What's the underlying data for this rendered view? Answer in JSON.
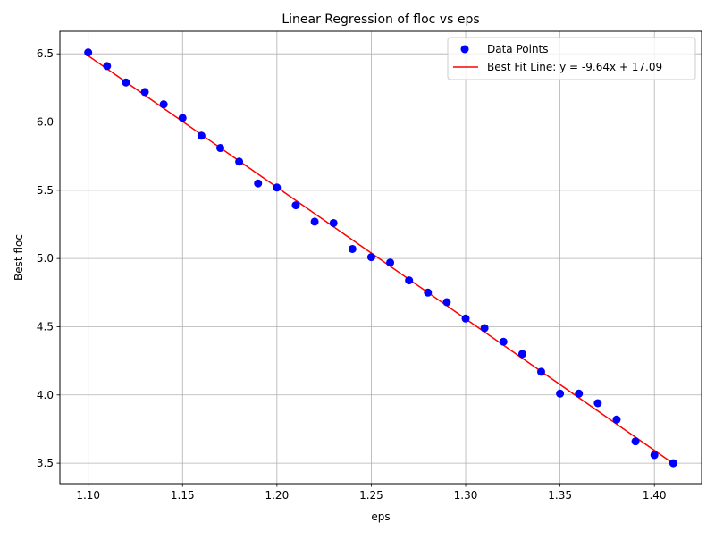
{
  "chart_data": {
    "type": "scatter",
    "title": "Linear Regression of floc vs eps",
    "xlabel": "eps",
    "ylabel": "Best floc",
    "xlim": [
      1.085,
      1.425
    ],
    "ylim": [
      3.35,
      6.665
    ],
    "grid": true,
    "legend_placement": "top-right",
    "x_ticks": [
      "1.10",
      "1.15",
      "1.20",
      "1.25",
      "1.30",
      "1.35",
      "1.40"
    ],
    "y_ticks": [
      "3.5",
      "4.0",
      "4.5",
      "5.0",
      "5.5",
      "6.0",
      "6.5"
    ],
    "series": [
      {
        "name": "Data Points",
        "kind": "scatter",
        "color": "#0000ff",
        "x": [
          1.1,
          1.11,
          1.12,
          1.13,
          1.14,
          1.15,
          1.16,
          1.17,
          1.18,
          1.19,
          1.2,
          1.21,
          1.22,
          1.23,
          1.24,
          1.25,
          1.26,
          1.27,
          1.28,
          1.29,
          1.3,
          1.31,
          1.32,
          1.33,
          1.34,
          1.35,
          1.36,
          1.37,
          1.38,
          1.39,
          1.4,
          1.41
        ],
        "y": [
          6.51,
          6.41,
          6.29,
          6.22,
          6.13,
          6.03,
          5.9,
          5.81,
          5.71,
          5.55,
          5.52,
          5.39,
          5.27,
          5.26,
          5.07,
          5.01,
          4.97,
          4.84,
          4.75,
          4.68,
          4.56,
          4.49,
          4.39,
          4.3,
          4.17,
          4.01,
          4.01,
          3.94,
          3.82,
          3.66,
          3.56,
          3.5
        ]
      },
      {
        "name": "Best Fit Line: y = -9.64x + 17.09",
        "kind": "line",
        "color": "#ff0000",
        "slope": -9.64,
        "intercept": 17.09,
        "x_range": [
          1.1,
          1.41
        ]
      }
    ]
  }
}
